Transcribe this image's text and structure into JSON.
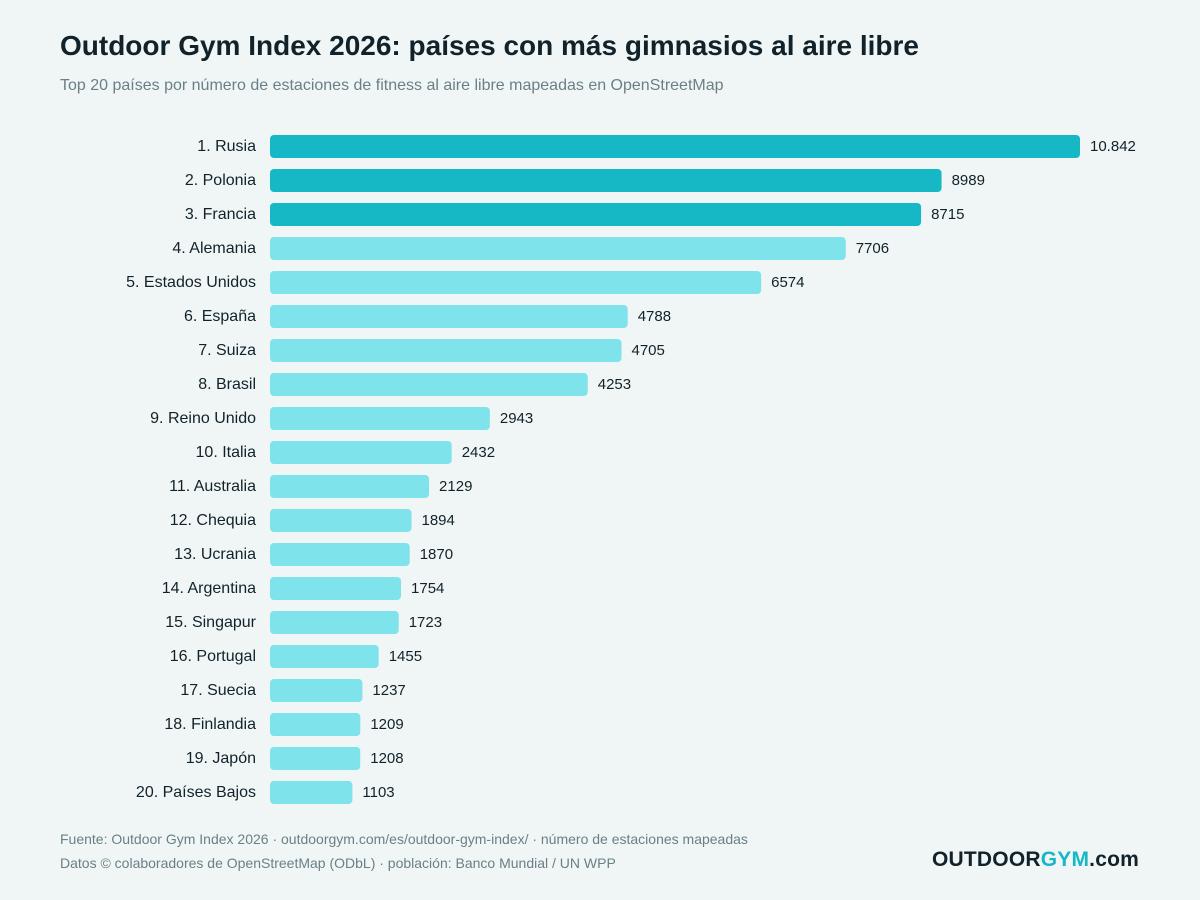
{
  "header": {
    "title": "Outdoor Gym Index 2026: países con más gimnasios al aire libre",
    "subtitle": "Top 20 países por número de estaciones de fitness al aire libre mapeadas en OpenStreetMap"
  },
  "footer": {
    "source_line": "Fuente: Outdoor Gym Index 2026 · outdoorgym.com/es/outdoor-gym-index/ · número de estaciones mapeadas",
    "data_line": "Datos © colaboradores de OpenStreetMap (ODbL) · población: Banco Mundial / UN WPP"
  },
  "brand": {
    "part1": "OUTDOOR",
    "part2": "GYM",
    "part3": ".com"
  },
  "colors": {
    "top3": "#17b8c5",
    "rest": "#7fe3eb",
    "background": "#f0f6f6",
    "text": "#11222a"
  },
  "chart_data": {
    "type": "bar",
    "orientation": "horizontal",
    "title": "Outdoor Gym Index 2026: países con más gimnasios al aire libre",
    "subtitle": "Top 20 países por número de estaciones de fitness al aire libre mapeadas en OpenStreetMap",
    "xlim": [
      0,
      10842
    ],
    "grid": false,
    "highlight_top": 3,
    "categories": [
      "1. Rusia",
      "2. Polonia",
      "3. Francia",
      "4. Alemania",
      "5. Estados Unidos",
      "6. España",
      "7. Suiza",
      "8. Brasil",
      "9. Reino Unido",
      "10. Italia",
      "11. Australia",
      "12. Chequia",
      "13. Ucrania",
      "14. Argentina",
      "15. Singapur",
      "16. Portugal",
      "17. Suecia",
      "18. Finlandia",
      "19. Japón",
      "20. Países Bajos"
    ],
    "values": [
      10842,
      8989,
      8715,
      7706,
      6574,
      4788,
      4705,
      4253,
      2943,
      2432,
      2129,
      1894,
      1870,
      1754,
      1723,
      1455,
      1237,
      1209,
      1208,
      1103
    ],
    "value_labels": [
      "10.842",
      "8989",
      "8715",
      "7706",
      "6574",
      "4788",
      "4705",
      "4253",
      "2943",
      "2432",
      "2129",
      "1894",
      "1870",
      "1754",
      "1723",
      "1455",
      "1237",
      "1209",
      "1208",
      "1103"
    ]
  }
}
